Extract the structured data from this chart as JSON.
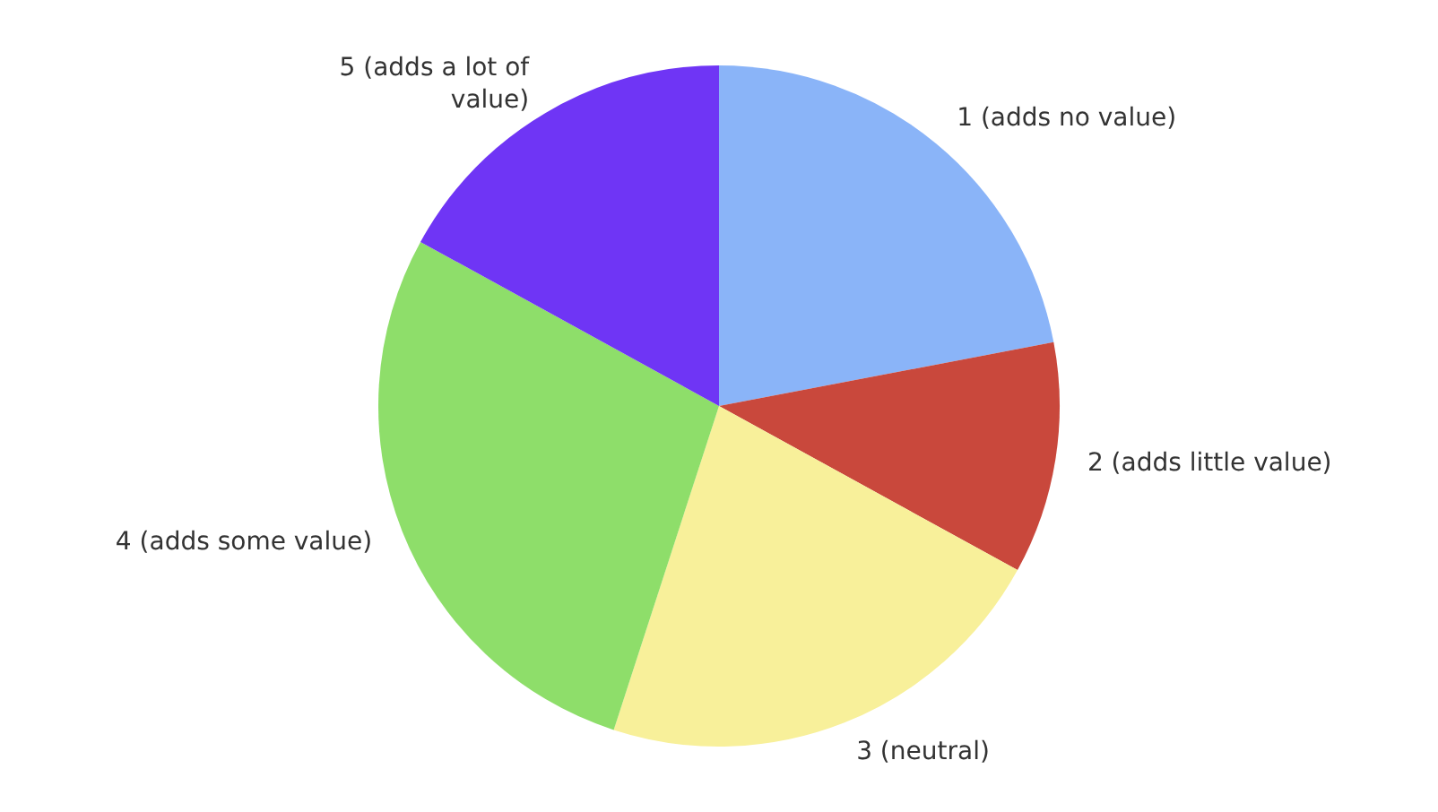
{
  "chart_data": {
    "type": "pie",
    "categories": [
      "1 (adds no value)",
      "2 (adds little value)",
      "3 (neutral)",
      "4 (adds some value)",
      "5 (adds a lot of value)"
    ],
    "values": [
      22,
      11,
      22,
      28,
      17
    ],
    "colors": [
      "#8ab4f8",
      "#c9483c",
      "#f8f09a",
      "#8ede6a",
      "#6f35f5"
    ],
    "legend": false
  }
}
